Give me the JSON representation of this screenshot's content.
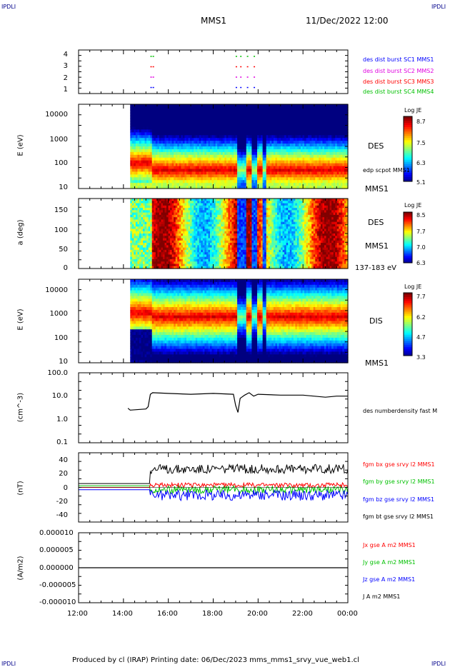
{
  "header": {
    "corner_tl": "IPDLI",
    "corner_tr": "IPDLI",
    "corner_bl": "IPDLI",
    "corner_br": "IPDLI",
    "spacecraft": "MMS1",
    "datetime": "11/Dec/2022 12:00"
  },
  "footer": {
    "text": "Produced by cl (IRAP)   Printing date: 06/Dec/2023   mms_mms1_srvy_vue_web1.cl"
  },
  "colors": {
    "blue": "#0000ff",
    "magenta": "#e000e0",
    "red": "#ff0000",
    "green": "#00c000",
    "black": "#000000"
  },
  "chart_data": [
    {
      "type": "scatter",
      "title": "",
      "ylabel": "",
      "y_ticks": [
        "4",
        "3",
        "2",
        "1"
      ],
      "legend": [
        {
          "name": "des dist burst SC1 MMS1",
          "color": "#0000ff"
        },
        {
          "name": "des dist burst SC2 MMS2",
          "color": "#e000e0"
        },
        {
          "name": "des dist burst SC3 MMS3",
          "color": "#ff0000"
        },
        {
          "name": "des dist burst SC4 MMS4",
          "color": "#00c000"
        }
      ]
    },
    {
      "type": "heatmap",
      "ylabel": "E (eV)",
      "y_ticks": [
        "10000",
        "1000",
        "100",
        "10"
      ],
      "scale": "log",
      "instrument": "DES",
      "extra_label": "edp scpot MMS1",
      "sc_label": "MMS1",
      "colorbar": {
        "title": "Log JE",
        "ticks": [
          "8.7",
          "7.5",
          "6.3",
          "5.1"
        ]
      }
    },
    {
      "type": "heatmap",
      "ylabel": "a (deg)",
      "y_ticks": [
        "150",
        "100",
        "50",
        "0"
      ],
      "instrument": "DES",
      "sc_label": "MMS1",
      "energy_label": "137-183 eV",
      "colorbar": {
        "title": "Log JE",
        "ticks": [
          "8.5",
          "7.7",
          "7.0",
          "6.3"
        ]
      }
    },
    {
      "type": "heatmap",
      "ylabel": "E (eV)",
      "y_ticks": [
        "10000",
        "1000",
        "100",
        "10"
      ],
      "scale": "log",
      "instrument": "DIS",
      "sc_label": "MMS1",
      "colorbar": {
        "title": "Log JE",
        "ticks": [
          "7.7",
          "6.2",
          "4.7",
          "3.3"
        ]
      }
    },
    {
      "type": "line",
      "ylabel": "(cm^-3)",
      "y_ticks": [
        "100.0",
        "10.0",
        "1.0",
        "0.1"
      ],
      "scale": "log",
      "ylim": [
        0.1,
        100
      ],
      "legend": [
        {
          "name": "des numberdensity fast M",
          "color": "#000000"
        }
      ],
      "series": [
        {
          "x": [
            14.2,
            14.3,
            15.0,
            15.1,
            15.2,
            15.3,
            16,
            17,
            18,
            18.9,
            19.0,
            19.1,
            19.2,
            19.4,
            19.6,
            19.8,
            20,
            21,
            22,
            23,
            23.5,
            24
          ],
          "y": [
            3,
            2.5,
            2.8,
            3.5,
            12,
            14,
            13,
            12,
            13,
            12,
            4,
            2,
            8,
            11,
            14,
            10,
            12,
            11,
            11,
            9,
            10,
            10
          ]
        }
      ]
    },
    {
      "type": "line",
      "ylabel": "(nT)",
      "y_ticks": [
        "40",
        "20",
        "0",
        "-20",
        "-40"
      ],
      "ylim": [
        -45,
        45
      ],
      "legend": [
        {
          "name": "fgm bx gse srvy l2 MMS1",
          "color": "#ff0000"
        },
        {
          "name": "fgm by gse srvy l2 MMS1",
          "color": "#00c000"
        },
        {
          "name": "fgm bz gse srvy l2 MMS1",
          "color": "#0000ff"
        },
        {
          "name": "fgm bt gse srvy l2 MMS1",
          "color": "#000000"
        }
      ]
    },
    {
      "type": "line",
      "ylabel": "(A/m2)",
      "y_ticks": [
        "0.000010",
        "0.000005",
        "0.000000",
        "-0.000005",
        "-0.000010"
      ],
      "ylim": [
        -1e-05,
        1e-05
      ],
      "legend": [
        {
          "name": "Jx gse A m2 MMS1",
          "color": "#ff0000"
        },
        {
          "name": "Jy gse A m2 MMS1",
          "color": "#00c000"
        },
        {
          "name": "Jz gse A m2 MMS1",
          "color": "#0000ff"
        },
        {
          "name": "J A m2 MMS1",
          "color": "#000000"
        }
      ]
    }
  ],
  "x_axis": {
    "ticks": [
      "12:00",
      "14:00",
      "16:00",
      "18:00",
      "20:00",
      "22:00",
      "00:00"
    ]
  }
}
